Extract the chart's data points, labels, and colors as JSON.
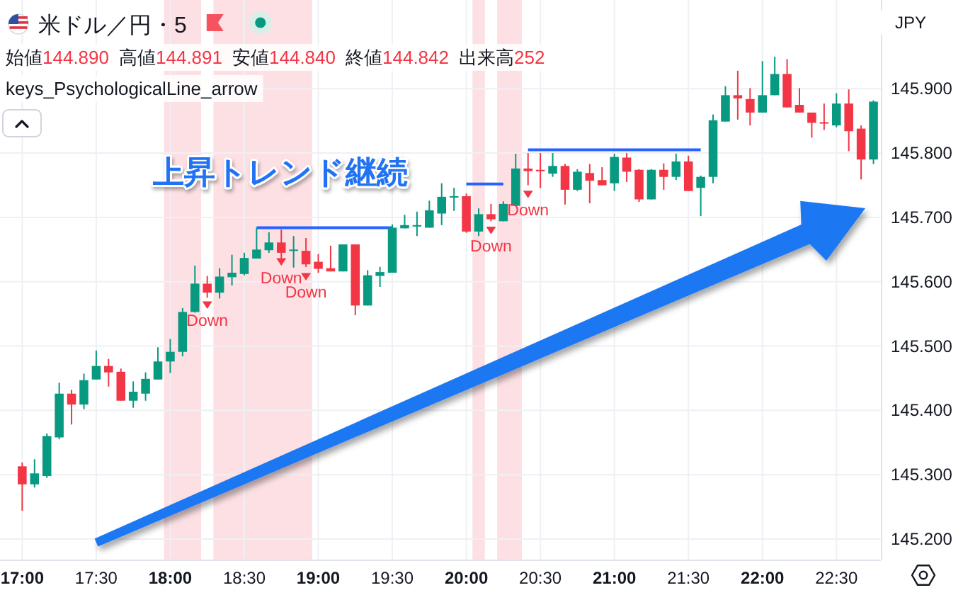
{
  "chart_data": {
    "type": "candlestick",
    "title": "米ドル／円・5",
    "x": [
      17,
      17.0833,
      17.1667,
      17.25,
      17.3333,
      17.4167,
      17.5,
      17.5833,
      17.6667,
      17.75,
      17.8333,
      17.9167,
      18,
      18.0833,
      18.1667,
      18.25,
      18.3333,
      18.4167,
      18.5,
      18.5833,
      18.6667,
      18.75,
      18.8333,
      18.9167,
      19,
      19.0833,
      19.1667,
      19.25,
      19.3333,
      19.4167,
      19.5,
      19.5833,
      19.6667,
      19.75,
      19.8333,
      19.9167,
      20,
      20.0833,
      20.1667,
      20.25,
      20.3333,
      20.4167,
      20.5,
      20.5833,
      20.6667,
      20.75,
      20.8333,
      20.9167,
      21,
      21.0833,
      21.1667,
      21.25,
      21.3333,
      21.4167,
      21.5,
      21.5833,
      21.6667,
      21.75,
      21.8333,
      21.9167,
      22,
      22.0833,
      22.1667,
      22.25,
      22.3333,
      22.4167,
      22.5,
      22.5833,
      22.6667,
      22.75
    ],
    "ohlc": [
      [
        145.313,
        145.319,
        145.244,
        145.285
      ],
      [
        145.285,
        145.324,
        145.28,
        145.302
      ],
      [
        145.298,
        145.364,
        145.295,
        145.36
      ],
      [
        145.358,
        145.443,
        145.355,
        145.426
      ],
      [
        145.426,
        145.432,
        145.378,
        145.409
      ],
      [
        145.409,
        145.457,
        145.402,
        145.447
      ],
      [
        145.448,
        145.493,
        145.448,
        145.469
      ],
      [
        145.469,
        145.48,
        145.437,
        145.459
      ],
      [
        145.46,
        145.465,
        145.415,
        145.415
      ],
      [
        145.415,
        145.445,
        145.404,
        145.429
      ],
      [
        145.426,
        145.459,
        145.415,
        145.449
      ],
      [
        145.448,
        145.498,
        145.448,
        145.476
      ],
      [
        145.476,
        145.511,
        145.458,
        145.491
      ],
      [
        145.491,
        145.559,
        145.484,
        145.553
      ],
      [
        145.553,
        145.625,
        145.552,
        145.597
      ],
      [
        145.597,
        145.609,
        145.575,
        145.583
      ],
      [
        145.583,
        145.621,
        145.574,
        145.608
      ],
      [
        145.607,
        145.642,
        145.594,
        145.614
      ],
      [
        145.612,
        145.645,
        145.61,
        145.637
      ],
      [
        145.636,
        145.684,
        145.636,
        145.65
      ],
      [
        145.649,
        145.677,
        145.645,
        145.661
      ],
      [
        145.661,
        145.681,
        145.634,
        145.645
      ],
      [
        145.648,
        145.671,
        145.622,
        145.65
      ],
      [
        145.648,
        145.668,
        145.623,
        145.627
      ],
      [
        145.631,
        145.643,
        145.614,
        145.62
      ],
      [
        145.621,
        145.656,
        145.616,
        145.616
      ],
      [
        145.616,
        145.658,
        145.616,
        145.658
      ],
      [
        145.658,
        145.658,
        145.548,
        145.563
      ],
      [
        145.563,
        145.618,
        145.563,
        145.61
      ],
      [
        145.609,
        145.623,
        145.592,
        145.615
      ],
      [
        145.614,
        145.689,
        145.614,
        145.684
      ],
      [
        145.683,
        145.704,
        145.683,
        145.688
      ],
      [
        145.687,
        145.709,
        145.671,
        145.688
      ],
      [
        145.684,
        145.726,
        145.684,
        145.711
      ],
      [
        145.706,
        145.753,
        145.688,
        145.732
      ],
      [
        145.732,
        145.746,
        145.71,
        145.733
      ],
      [
        145.733,
        145.737,
        145.676,
        145.678
      ],
      [
        145.678,
        145.714,
        145.671,
        145.705
      ],
      [
        145.705,
        145.721,
        145.694,
        145.697
      ],
      [
        145.694,
        145.725,
        145.694,
        145.721
      ],
      [
        145.718,
        145.799,
        145.718,
        145.776
      ],
      [
        145.776,
        145.8,
        145.75,
        145.772
      ],
      [
        145.774,
        145.8,
        145.746,
        145.772
      ],
      [
        145.768,
        145.8,
        145.763,
        145.78
      ],
      [
        145.78,
        145.783,
        145.72,
        145.743
      ],
      [
        145.743,
        145.775,
        145.741,
        145.771
      ],
      [
        145.769,
        145.783,
        145.722,
        145.757
      ],
      [
        145.758,
        145.778,
        145.75,
        145.75
      ],
      [
        145.753,
        145.799,
        145.741,
        145.794
      ],
      [
        145.793,
        145.8,
        145.755,
        145.771
      ],
      [
        145.774,
        145.775,
        145.724,
        145.728
      ],
      [
        145.728,
        145.775,
        145.728,
        145.774
      ],
      [
        145.774,
        145.784,
        145.743,
        145.763
      ],
      [
        145.763,
        145.799,
        145.758,
        145.787
      ],
      [
        145.787,
        145.796,
        145.741,
        145.741
      ],
      [
        145.746,
        145.765,
        145.702,
        145.763
      ],
      [
        145.763,
        145.86,
        145.753,
        145.851
      ],
      [
        145.849,
        145.904,
        145.849,
        145.89
      ],
      [
        145.89,
        145.928,
        145.852,
        145.885
      ],
      [
        145.884,
        145.901,
        145.843,
        145.863
      ],
      [
        145.863,
        145.943,
        145.863,
        145.89
      ],
      [
        145.89,
        145.95,
        145.89,
        145.923
      ],
      [
        145.923,
        145.946,
        145.871,
        145.871
      ],
      [
        145.875,
        145.901,
        145.863,
        145.863
      ],
      [
        145.863,
        145.863,
        145.824,
        145.847
      ],
      [
        145.848,
        145.877,
        145.836,
        145.846
      ],
      [
        145.843,
        145.893,
        145.84,
        145.877
      ],
      [
        145.877,
        145.899,
        145.803,
        145.834
      ],
      [
        145.838,
        145.843,
        145.759,
        145.79
      ],
      [
        145.79,
        145.882,
        145.783,
        145.88
      ]
    ],
    "series": [
      {
        "type": "line",
        "color": "#2962ff",
        "x": [
          18.5833,
          19.5
        ],
        "values": [
          145.684,
          145.684
        ]
      },
      {
        "type": "line",
        "color": "#2962ff",
        "x": [
          20,
          20.25
        ],
        "values": [
          145.752,
          145.752
        ]
      },
      {
        "type": "line",
        "color": "#2962ff",
        "x": [
          20.4167,
          21.5833
        ],
        "values": [
          145.805,
          145.805
        ]
      }
    ],
    "bands": [
      {
        "axis": "x",
        "from": 17.9583,
        "to": 18.2083,
        "color": "#fde0e3"
      },
      {
        "axis": "x",
        "from": 18.2917,
        "to": 18.9583,
        "color": "#fde0e3"
      },
      {
        "axis": "x",
        "from": 20.0417,
        "to": 20.125,
        "color": "#fde0e3"
      },
      {
        "axis": "x",
        "from": 20.2083,
        "to": 20.375,
        "color": "#fde0e3"
      }
    ],
    "xlim": [
      16.85,
      22.8
    ],
    "ylim": [
      145.168,
      146.038
    ],
    "xticks": [
      {
        "value": 17,
        "label": "17:00"
      },
      {
        "value": 17.5,
        "label": "17:30"
      },
      {
        "value": 18,
        "label": "18:00"
      },
      {
        "value": 18.5,
        "label": "18:30"
      },
      {
        "value": 19,
        "label": "19:00"
      },
      {
        "value": 19.5,
        "label": "19:30"
      },
      {
        "value": 20,
        "label": "20:00"
      },
      {
        "value": 20.5,
        "label": "20:30"
      },
      {
        "value": 21,
        "label": "21:00"
      },
      {
        "value": 21.5,
        "label": "21:30"
      },
      {
        "value": 22,
        "label": "22:00"
      },
      {
        "value": 22.5,
        "label": "22:30"
      }
    ],
    "yticks": [
      {
        "value": 145.2,
        "label": "145.200"
      },
      {
        "value": 145.3,
        "label": "145.300"
      },
      {
        "value": 145.4,
        "label": "145.400"
      },
      {
        "value": 145.5,
        "label": "145.500"
      },
      {
        "value": 145.6,
        "label": "145.600"
      },
      {
        "value": 145.7,
        "label": "145.700"
      },
      {
        "value": 145.8,
        "label": "145.800"
      },
      {
        "value": 145.9,
        "label": "145.900"
      }
    ],
    "grid": true,
    "annotations": [
      "始値144.890",
      "高値144.891",
      "安値144.840",
      "終値144.842",
      "出来高252",
      "keys_PsychologicalLine_arrow",
      "上昇トレンド継続",
      "JPY",
      {
        "text": "Down",
        "x": 18.25,
        "y": 145.564
      },
      {
        "text": "Down",
        "x": 18.75,
        "y": 145.631
      },
      {
        "text": "Down",
        "x": 18.9167,
        "y": 145.608
      },
      {
        "text": "Down",
        "x": 20.1667,
        "y": 145.68
      },
      {
        "text": "Down",
        "x": 20.4167,
        "y": 145.736
      }
    ]
  }
}
